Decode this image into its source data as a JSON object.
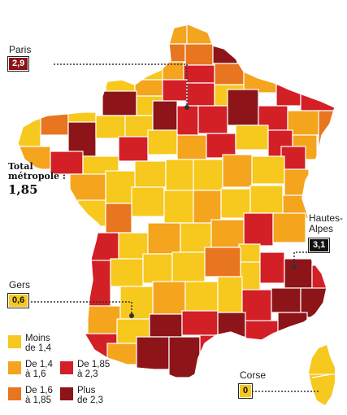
{
  "map": {
    "total_label_line1": "Total",
    "total_label_line2": "métropole :",
    "total_value": "1,85",
    "callouts": {
      "paris": {
        "name": "Paris",
        "value": "2,9"
      },
      "hautes_alpes": {
        "name": "Hautes-\nAlpes",
        "value": "3,1"
      },
      "gers": {
        "name": "Gers",
        "value": "0,6"
      },
      "corse": {
        "name": "Corse",
        "value": "0"
      }
    },
    "legend": [
      {
        "line1": "Moins",
        "line2": "de 1,4",
        "color": "#f7c81e"
      },
      {
        "line1": "De 1,4",
        "line2": "à 1,6",
        "color": "#f4a41d"
      },
      {
        "line1": "De 1,6",
        "line2": "à 1,85",
        "color": "#e8751f"
      },
      {
        "line1": "De 1,85",
        "line2": "à 2,3",
        "color": "#d31f26"
      },
      {
        "line1": "Plus",
        "line2": "de 2,3",
        "color": "#8d1418"
      }
    ],
    "colors": {
      "lt14": "#f7c81e",
      "c14_16": "#f4a41d",
      "c16_185": "#e8751f",
      "c185_23": "#d31f26",
      "gt23": "#8d1418",
      "border": "#ffffff",
      "callout_line": "#333333"
    }
  }
}
